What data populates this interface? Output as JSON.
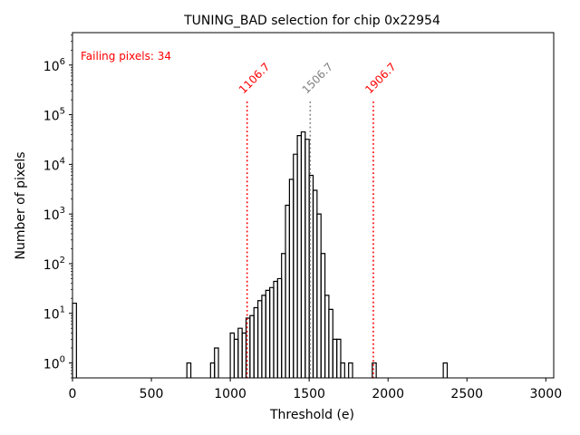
{
  "chart_data": {
    "type": "histogram",
    "title": "TUNING_BAD selection for chip 0x22954",
    "xlabel": "Threshold (e)",
    "ylabel": "Number of pixels",
    "xlim": [
      0,
      3050
    ],
    "ylim": [
      0.5,
      4500000
    ],
    "yscale": "log",
    "x_ticks": [
      0,
      500,
      1000,
      1500,
      2000,
      2500,
      3000
    ],
    "x_tick_labels": [
      "0",
      "500",
      "1000",
      "1500",
      "2000",
      "2500",
      "3000"
    ],
    "y_ticks": [
      1,
      10,
      100,
      1000,
      10000,
      100000,
      1000000
    ],
    "y_tick_labels": [
      {
        "base": "10",
        "exp": "0"
      },
      {
        "base": "10",
        "exp": "1"
      },
      {
        "base": "10",
        "exp": "2"
      },
      {
        "base": "10",
        "exp": "3"
      },
      {
        "base": "10",
        "exp": "4"
      },
      {
        "base": "10",
        "exp": "5"
      },
      {
        "base": "10",
        "exp": "6"
      }
    ],
    "bin_width": 25,
    "bins": [
      {
        "x0": 0,
        "count": 16
      },
      {
        "x0": 725,
        "count": 1
      },
      {
        "x0": 875,
        "count": 1
      },
      {
        "x0": 900,
        "count": 2
      },
      {
        "x0": 1000,
        "count": 4
      },
      {
        "x0": 1025,
        "count": 3
      },
      {
        "x0": 1050,
        "count": 5
      },
      {
        "x0": 1075,
        "count": 4
      },
      {
        "x0": 1100,
        "count": 8
      },
      {
        "x0": 1125,
        "count": 9
      },
      {
        "x0": 1150,
        "count": 13
      },
      {
        "x0": 1175,
        "count": 18
      },
      {
        "x0": 1200,
        "count": 23
      },
      {
        "x0": 1225,
        "count": 29
      },
      {
        "x0": 1250,
        "count": 33
      },
      {
        "x0": 1275,
        "count": 44
      },
      {
        "x0": 1300,
        "count": 50
      },
      {
        "x0": 1325,
        "count": 160
      },
      {
        "x0": 1350,
        "count": 1500
      },
      {
        "x0": 1375,
        "count": 5000
      },
      {
        "x0": 1400,
        "count": 16000
      },
      {
        "x0": 1425,
        "count": 38000
      },
      {
        "x0": 1450,
        "count": 45000
      },
      {
        "x0": 1475,
        "count": 32000
      },
      {
        "x0": 1500,
        "count": 6000
      },
      {
        "x0": 1525,
        "count": 3000
      },
      {
        "x0": 1550,
        "count": 1000
      },
      {
        "x0": 1575,
        "count": 160
      },
      {
        "x0": 1600,
        "count": 23
      },
      {
        "x0": 1625,
        "count": 12
      },
      {
        "x0": 1650,
        "count": 3
      },
      {
        "x0": 1675,
        "count": 3
      },
      {
        "x0": 1700,
        "count": 1
      },
      {
        "x0": 1750,
        "count": 1
      },
      {
        "x0": 1900,
        "count": 1
      },
      {
        "x0": 2350,
        "count": 1
      }
    ],
    "vlines": [
      {
        "x": 1106.7,
        "label": "1106.7",
        "color": "#ff0000"
      },
      {
        "x": 1506.7,
        "label": "1506.7",
        "color": "#808080"
      },
      {
        "x": 1906.7,
        "label": "1906.7",
        "color": "#ff0000"
      }
    ],
    "annotation": {
      "text": "Failing pixels: 34",
      "color": "#ff0000",
      "placement": "top-left"
    }
  }
}
